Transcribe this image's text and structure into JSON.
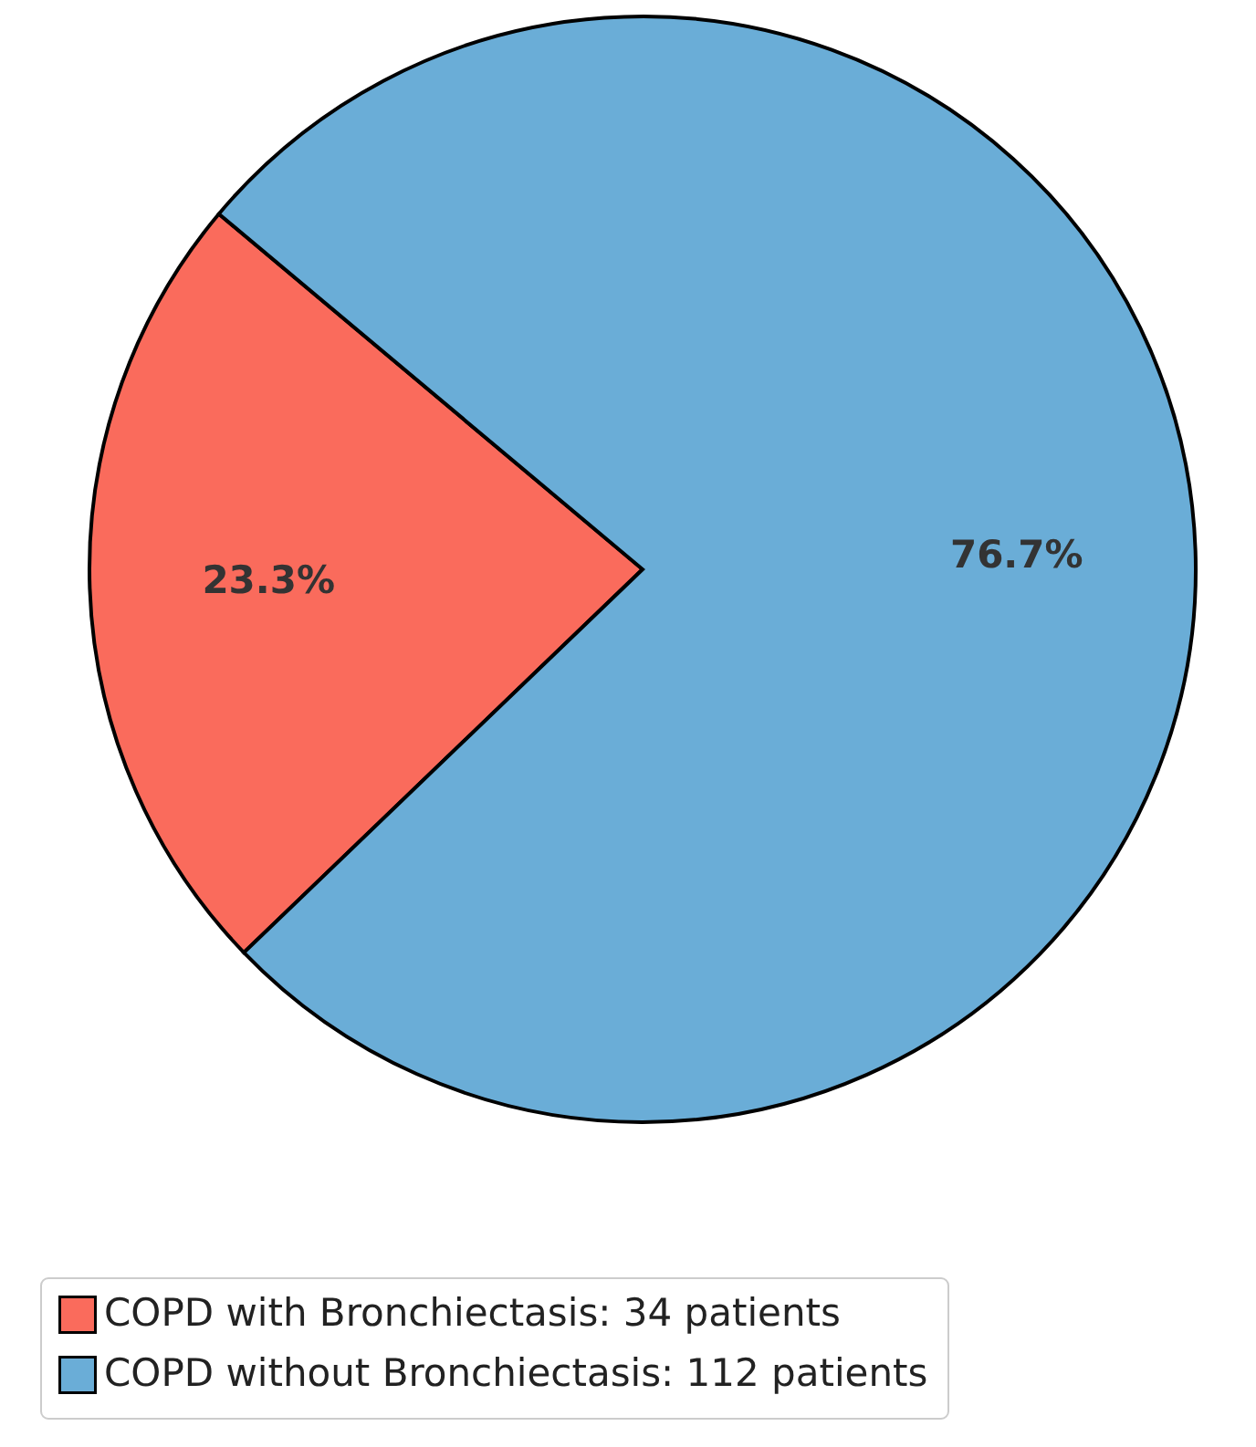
{
  "chart_data": {
    "type": "pie",
    "categories": [
      "COPD with Bronchiectasis: 34 patients",
      "COPD without Bronchiectasis: 112 patients"
    ],
    "values": [
      23.3,
      76.7
    ],
    "value_labels": [
      "23.3%",
      "76.7%"
    ],
    "colors": [
      "#fa6b5c",
      "#6aadd7"
    ],
    "legend": "bottom"
  }
}
